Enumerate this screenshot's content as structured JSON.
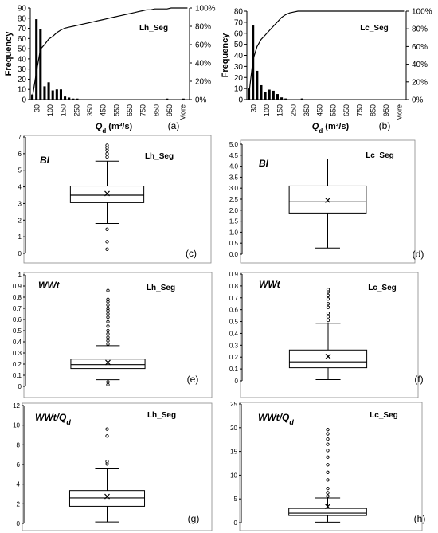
{
  "chart_data": [
    {
      "id": "a",
      "type": "bar",
      "label": "(a)",
      "name": "Lh_Seg",
      "ylabel": "Frequency",
      "xlabel_main": "Q",
      "xlabel_sub": "d",
      "xlabel_unit": " (m³/s)",
      "ylim": [
        0,
        90
      ],
      "yticks": [
        "0",
        "10",
        "20",
        "30",
        "40",
        "50",
        "60",
        "70",
        "80",
        "90"
      ],
      "y2ticks": [
        "0%",
        "20%",
        "40%",
        "60%",
        "80%",
        "100%"
      ],
      "xtick_labels": [
        "30",
        "100",
        "150",
        "250",
        "350",
        "450",
        "550",
        "650",
        "750",
        "850",
        "950",
        "More"
      ],
      "values": [
        5,
        79,
        69,
        13,
        17,
        9,
        10,
        10,
        3,
        2,
        1,
        1,
        0,
        0,
        0,
        0,
        0,
        0,
        0,
        0,
        0,
        0,
        0,
        0,
        0,
        0,
        0,
        0,
        0,
        0,
        0,
        0,
        0,
        1,
        0,
        0,
        0,
        1,
        0
      ],
      "cumulative": [
        2,
        30,
        55,
        60,
        66,
        69,
        73,
        76,
        78,
        79,
        80,
        81,
        82,
        83,
        84,
        85,
        86,
        87,
        88,
        89,
        90,
        91,
        92,
        93,
        94,
        95,
        96,
        97,
        98,
        98,
        99,
        99,
        99,
        99,
        100,
        100,
        100,
        100,
        100
      ]
    },
    {
      "id": "b",
      "type": "bar",
      "label": "(b)",
      "name": "Lc_Seg",
      "ylabel": "Frequency",
      "xlabel_main": "Q",
      "xlabel_sub": "d",
      "xlabel_unit": " (m³/s)",
      "ylim": [
        0,
        80
      ],
      "yticks": [
        "0",
        "10",
        "20",
        "30",
        "40",
        "50",
        "60",
        "70",
        "80"
      ],
      "y2ticks": [
        "0%",
        "20%",
        "40%",
        "60%",
        "80%",
        "100%"
      ],
      "xtick_labels": [
        "30",
        "100",
        "150",
        "250",
        "350",
        "450",
        "550",
        "650",
        "750",
        "850",
        "950",
        "More"
      ],
      "values": [
        10,
        67,
        26,
        13,
        7,
        9,
        8,
        5,
        2,
        1,
        0,
        0,
        0,
        1,
        0,
        0,
        0,
        0,
        0,
        0,
        0,
        0,
        0,
        0,
        0,
        0,
        0,
        0,
        0,
        0,
        0,
        0,
        0,
        0,
        0,
        0,
        0,
        0,
        0
      ],
      "cumulative": [
        6,
        45,
        60,
        68,
        73,
        78,
        83,
        88,
        93,
        96,
        98,
        99,
        100,
        100,
        100,
        100,
        100,
        100,
        100,
        100,
        100,
        100,
        100,
        100,
        100,
        100,
        100,
        100,
        100,
        100,
        100,
        100,
        100,
        100,
        100,
        100,
        100,
        100,
        100
      ]
    },
    {
      "id": "c",
      "type": "box",
      "label": "(c)",
      "name": "Lh_Seg",
      "title": "BI",
      "ylim": [
        0,
        7
      ],
      "yticks": [
        "0",
        "1",
        "2",
        "3",
        "4",
        "5",
        "6",
        "7"
      ],
      "whisker_low": 1.8,
      "q1": 3.05,
      "median": 3.5,
      "q3": 4.05,
      "whisker_high": 5.55,
      "mean": 3.6,
      "outliers": [
        0.25,
        0.7,
        1.45,
        5.8,
        6.0,
        6.2,
        6.35,
        6.5
      ]
    },
    {
      "id": "d",
      "type": "box",
      "label": "(d)",
      "name": "Lc_Seg",
      "title": "BI",
      "ylim": [
        0,
        5
      ],
      "yticks": [
        "0.0",
        "0.5",
        "1.0",
        "1.5",
        "2.0",
        "2.5",
        "3.0",
        "3.5",
        "4.0",
        "4.5",
        "5.0"
      ],
      "whisker_low": 0.28,
      "q1": 1.87,
      "median": 2.38,
      "q3": 3.1,
      "whisker_high": 4.33,
      "mean": 2.45,
      "outliers": []
    },
    {
      "id": "e",
      "type": "box",
      "label": "(e)",
      "name": "Lh_Seg",
      "title": "WWt",
      "ylim": [
        0,
        1
      ],
      "yticks": [
        "0",
        "0.1",
        "0.2",
        "0.3",
        "0.4",
        "0.5",
        "0.6",
        "0.7",
        "0.8",
        "0.9",
        "1"
      ],
      "whisker_low": 0.06,
      "q1": 0.16,
      "median": 0.195,
      "q3": 0.245,
      "whisker_high": 0.365,
      "mean": 0.215,
      "outliers": [
        0.015,
        0.04,
        0.38,
        0.41,
        0.44,
        0.47,
        0.5,
        0.54,
        0.58,
        0.62,
        0.65,
        0.68,
        0.7,
        0.73,
        0.76,
        0.78,
        0.86
      ]
    },
    {
      "id": "f",
      "type": "box",
      "label": "(f)",
      "name": "Lc_Seg",
      "title": "WWt",
      "ylim": [
        0,
        0.9
      ],
      "yticks": [
        "0",
        "0.1",
        "0.2",
        "0.3",
        "0.4",
        "0.5",
        "0.6",
        "0.7",
        "0.8",
        "0.9"
      ],
      "whisker_low": 0.01,
      "q1": 0.11,
      "median": 0.16,
      "q3": 0.26,
      "whisker_high": 0.485,
      "mean": 0.205,
      "outliers": [
        0.51,
        0.54,
        0.57,
        0.62,
        0.65,
        0.69,
        0.72,
        0.75,
        0.77
      ]
    },
    {
      "id": "g",
      "type": "box",
      "label": "(g)",
      "name": "Lh_Seg",
      "title_main": "WWt/Q",
      "title_sub": "d",
      "ylim": [
        0,
        12
      ],
      "yticks": [
        "0",
        "2",
        "4",
        "6",
        "8",
        "10",
        "12"
      ],
      "whisker_low": 0.15,
      "q1": 1.75,
      "median": 2.6,
      "q3": 3.35,
      "whisker_high": 5.55,
      "mean": 2.75,
      "outliers": [
        6.05,
        6.3,
        8.9,
        9.6
      ]
    },
    {
      "id": "h",
      "type": "box",
      "label": "(h)",
      "name": "Lc_Seg",
      "title_main": "WWt/Q",
      "title_sub": "d",
      "ylim": [
        0,
        25
      ],
      "yticks": [
        "0",
        "5",
        "10",
        "15",
        "20",
        "25"
      ],
      "whisker_low": 0.1,
      "q1": 1.5,
      "median": 2.0,
      "q3": 3.0,
      "whisker_high": 5.2,
      "mean": 3.4,
      "outliers": [
        5.6,
        6.3,
        7.2,
        9.0,
        10.6,
        12.2,
        13.8,
        15.2,
        16.5,
        17.6,
        18.7,
        19.6
      ]
    }
  ]
}
